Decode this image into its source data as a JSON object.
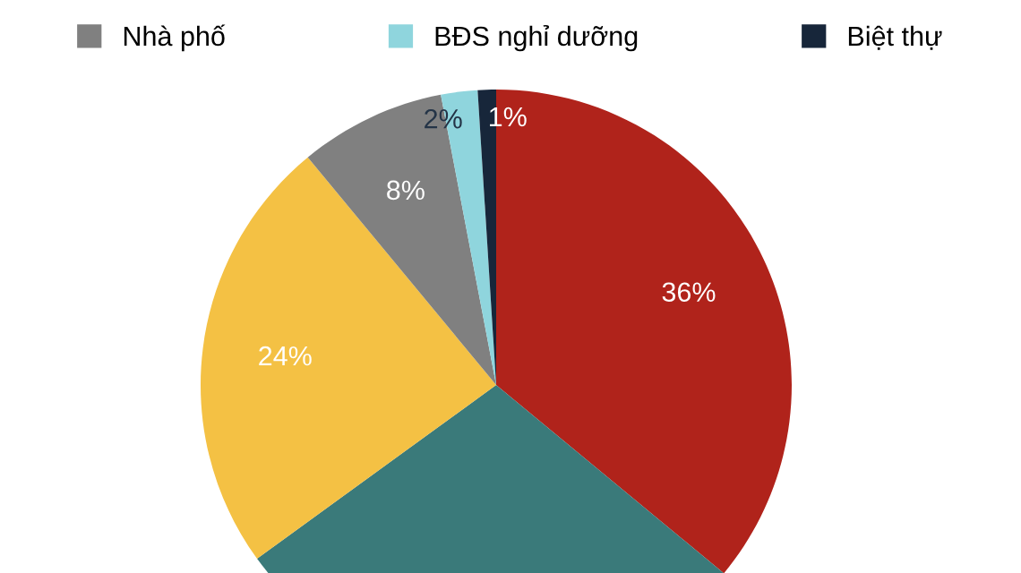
{
  "chart_data": {
    "type": "pie",
    "categories": [
      null,
      null,
      null,
      "Nhà phố",
      "BĐS nghỉ dưỡng",
      "Biệt thự"
    ],
    "values": [
      36,
      29,
      24,
      8,
      2,
      1
    ],
    "colors": [
      "#b0231b",
      "#3a7a7a",
      "#f4c144",
      "#808080",
      "#8fd5dd",
      "#17263a"
    ],
    "value_labels": [
      "36%",
      null,
      "24%",
      "8%",
      "2%",
      "1%"
    ],
    "legend": "top"
  }
}
